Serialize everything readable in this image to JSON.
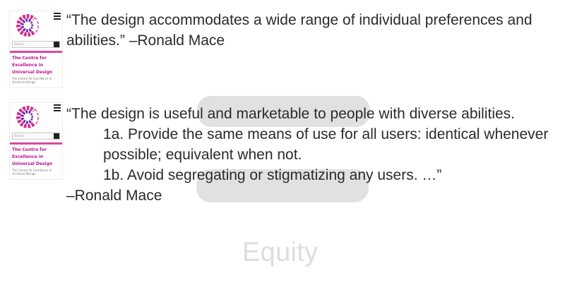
{
  "thumbnails": [
    {
      "search_placeholder": "Search",
      "title": "The Centre for\nExcellence in\nUniversal Design",
      "small_text": "The Centre for Excellence in Universal Design"
    },
    {
      "search_placeholder": "Search",
      "title": "The Centre for\nExcellence in\nUniversal Design",
      "small_text": "The Centre for Excellence in Universal Design"
    }
  ],
  "quotes": {
    "top": [
      "“The design accommodates a wide range of individual preferences and",
      "abilities.” –Ronald Mace"
    ],
    "bottom": {
      "intro": "“The design is useful and marketable to people with diverse abilities.",
      "items": [
        "1a. Provide the same means of use for all users: identical whenever",
        "possible; equivalent when not.",
        "1b. Avoid segregating or stigmatizing any users. …”"
      ],
      "author": "–Ronald Mace"
    }
  },
  "footer": {
    "label": "Equity"
  },
  "colors": {
    "brand_magenta": "#b8138f",
    "rule_pink": "#d64aa0",
    "highlight_gray": "#cfcfcf"
  },
  "icons": {
    "logo": "circular-logo-icon",
    "menu": "hamburger-menu-icon",
    "search": "search-button-icon"
  }
}
